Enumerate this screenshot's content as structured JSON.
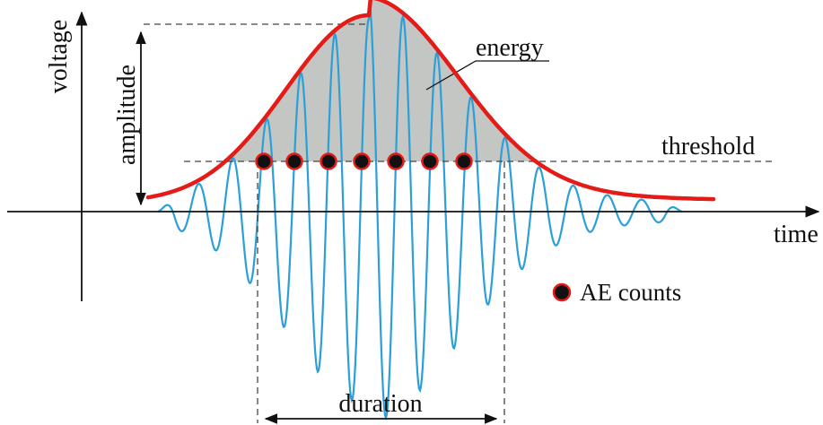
{
  "labels": {
    "voltage": "voltage",
    "time": "time",
    "amplitude": "amplitude",
    "energy": "energy",
    "threshold": "threshold",
    "duration": "duration",
    "ae_counts": "AE counts"
  },
  "colors": {
    "envelope": "#e41b17",
    "signal": "#2a9fd8",
    "energy_fill": "#c4c6c4",
    "count_marker_fill": "#111111",
    "count_marker_stroke": "#e41b17",
    "axis": "#111111",
    "guide": "#444444"
  }
}
